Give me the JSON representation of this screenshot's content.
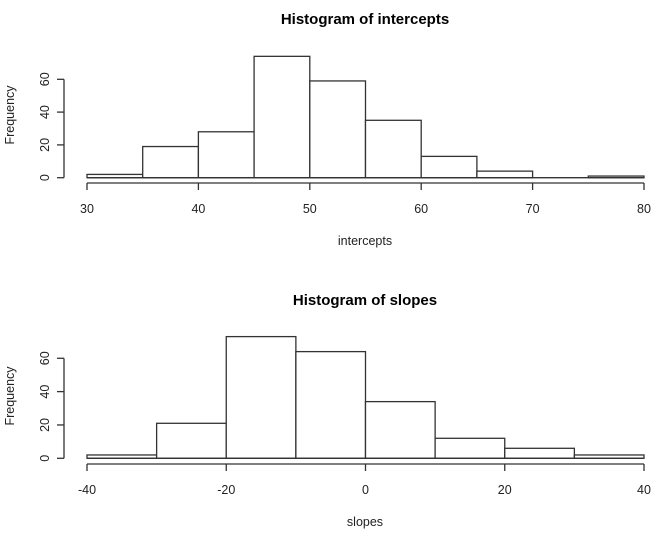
{
  "chart_data": [
    {
      "type": "bar",
      "subtype": "histogram",
      "title": "Histogram of intercepts",
      "xlabel": "intercepts",
      "ylabel": "Frequency",
      "bin_edges": [
        30,
        35,
        40,
        45,
        50,
        55,
        60,
        65,
        70,
        75,
        80
      ],
      "categories": [
        "30-35",
        "35-40",
        "40-45",
        "45-50",
        "50-55",
        "55-60",
        "60-65",
        "65-70",
        "70-75",
        "75-80"
      ],
      "values": [
        2,
        19,
        28,
        74,
        59,
        35,
        13,
        4,
        0,
        1
      ],
      "xlim": [
        30,
        80
      ],
      "ylim": [
        0,
        74
      ],
      "x_ticks": [
        "30",
        "40",
        "50",
        "60",
        "70",
        "80"
      ],
      "y_ticks": [
        "0",
        "20",
        "40",
        "60"
      ],
      "grid": false,
      "legend": null
    },
    {
      "type": "bar",
      "subtype": "histogram",
      "title": "Histogram of slopes",
      "xlabel": "slopes",
      "ylabel": "Frequency",
      "bin_edges": [
        -40,
        -30,
        -20,
        -10,
        0,
        10,
        20,
        30,
        40
      ],
      "categories": [
        "-40--30",
        "-30--20",
        "-20--10",
        "-10-0",
        "0-10",
        "10-20",
        "20-30",
        "30-40"
      ],
      "values": [
        2,
        21,
        73,
        64,
        34,
        12,
        6,
        2
      ],
      "xlim": [
        -40,
        40
      ],
      "ylim": [
        0,
        73
      ],
      "x_ticks": [
        "-40",
        "-20",
        "0",
        "20",
        "40"
      ],
      "y_ticks": [
        "0",
        "20",
        "40",
        "60"
      ],
      "grid": false,
      "legend": null
    }
  ]
}
